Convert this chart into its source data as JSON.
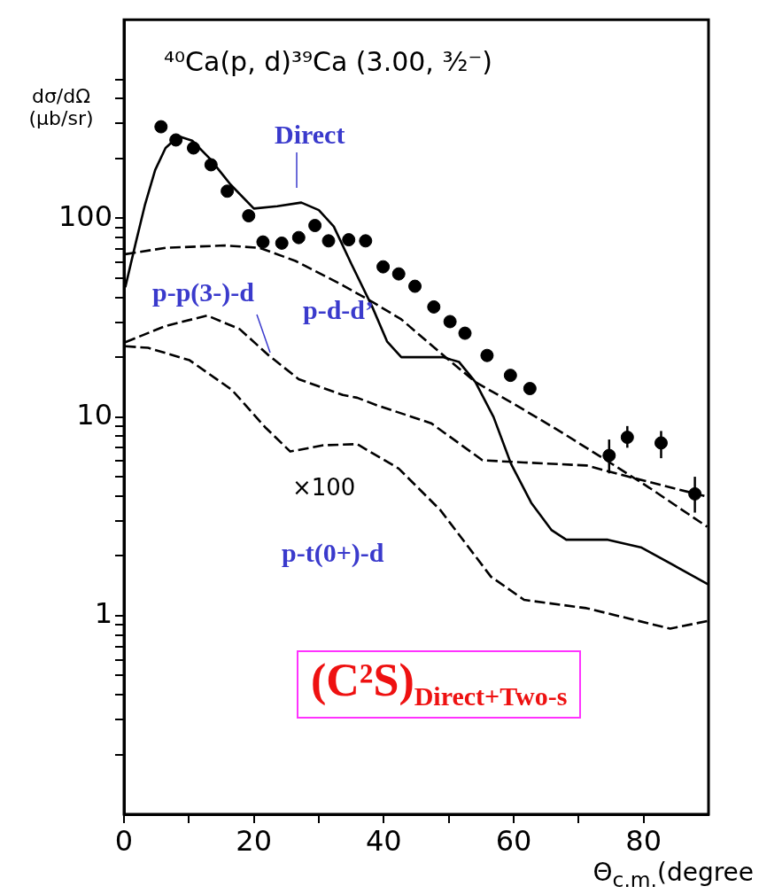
{
  "chart_data": {
    "type": "line",
    "title": "⁴⁰Ca(p, d)³⁹Ca (3.00, ³⁄₂⁻)",
    "xlabel": "Θ$_{c.m.}$(degree",
    "ylabel": "dσ/dΩ (μb/sr)",
    "xlim": [
      0,
      90
    ],
    "xticks": [
      0,
      {
        "value": 10,
        "label": null
      },
      20,
      {
        "value": 30,
        "label": null
      },
      40,
      {
        "value": 50,
        "label": null
      },
      60,
      {
        "value": 70,
        "label": null
      },
      80
    ],
    "ylim": [
      0.1,
      1000
    ],
    "log": "y",
    "grid": false,
    "legend": false,
    "yticks": [
      {
        "value": 0.2,
        "label": null
      },
      {
        "value": 0.3,
        "label": null
      },
      {
        "value": 0.4,
        "label": null
      },
      {
        "value": 0.5,
        "label": null
      },
      {
        "value": 0.6,
        "label": null
      },
      {
        "value": 0.7,
        "label": null
      },
      {
        "value": 0.8,
        "label": null
      },
      {
        "value": 0.9,
        "label": null
      },
      1,
      {
        "value": 2,
        "label": null
      },
      {
        "value": 3,
        "label": null
      },
      {
        "value": 4,
        "label": null
      },
      {
        "value": 5,
        "label": null
      },
      {
        "value": 6,
        "label": null
      },
      {
        "value": 7,
        "label": null
      },
      {
        "value": 8,
        "label": null
      },
      {
        "value": 9,
        "label": null
      },
      10,
      {
        "value": 20,
        "label": null
      },
      {
        "value": 30,
        "label": null
      },
      {
        "value": 40,
        "label": null
      },
      {
        "value": 50,
        "label": null
      },
      {
        "value": 60,
        "label": null
      },
      {
        "value": 70,
        "label": null
      },
      {
        "value": 80,
        "label": null
      },
      {
        "value": 90,
        "label": null
      },
      100,
      {
        "value": 200,
        "label": null
      },
      {
        "value": 300,
        "label": null
      },
      {
        "value": 400,
        "label": null
      },
      {
        "value": 500,
        "label": null
      }
    ],
    "annotations": [
      "×100",
      "(C²S)$_{Direct+Two-s}$"
    ],
    "series": [
      {
        "type": "scatter",
        "marker": "circle",
        "color": "#000000",
        "x": [
          5.7,
          8.0,
          10.7,
          13.4,
          15.9,
          19.2,
          21.4,
          24.3,
          26.9,
          29.4,
          31.5,
          34.6,
          37.2,
          39.9,
          42.3,
          44.8,
          47.7,
          50.2,
          52.5,
          55.9,
          59.5,
          62.5,
          74.7,
          77.5,
          82.7,
          87.9
        ],
        "values": [
          289,
          248,
          226,
          186,
          137,
          103,
          76,
          75,
          80,
          92,
          77,
          78,
          77,
          57,
          52.5,
          45.5,
          35.8,
          30.2,
          26.4,
          20.4,
          16.2,
          13.9,
          6.4,
          7.9,
          7.4,
          4.1
        ],
        "errors": [
          null,
          null,
          null,
          null,
          null,
          null,
          null,
          null,
          null,
          null,
          null,
          null,
          null,
          null,
          null,
          null,
          null,
          null,
          null,
          null,
          null,
          null,
          [
            5.2,
            7.7
          ],
          [
            7.0,
            9.0
          ],
          [
            6.2,
            8.5
          ],
          [
            3.3,
            5.0
          ]
        ]
      },
      {
        "name": "Direct",
        "line_style": "solid",
        "color": "#000000",
        "x": [
          0.2,
          1.8,
          3.2,
          4.8,
          6.4,
          8.4,
          10.5,
          13.2,
          16.4,
          20.0,
          23.6,
          27.3,
          30.0,
          32.3,
          35.0,
          38.2,
          40.5,
          42.7,
          49.1,
          51.6,
          54.1,
          56.9,
          59.6,
          62.7,
          65.8,
          68.1,
          74.5,
          79.7,
          89.9
        ],
        "values": [
          45,
          75,
          116,
          175,
          226,
          259,
          246,
          200,
          148,
          112,
          115,
          120,
          110,
          91,
          59,
          36,
          24,
          20,
          20,
          18.9,
          15,
          10,
          5.8,
          3.7,
          2.7,
          2.41,
          2.41,
          2.2,
          1.44
        ]
      },
      {
        "name": "p-d-d’",
        "line_style": "dashed",
        "color": "#000000",
        "x": [
          0.2,
          6.4,
          15.5,
          20.9,
          26.4,
          33.7,
          38.2,
          42.7,
          49.5,
          54.1,
          60.5,
          67.3,
          74.1,
          80.9,
          89.8
        ],
        "values": [
          66,
          71,
          73,
          71,
          61,
          46,
          38,
          31,
          20,
          15,
          11.4,
          8.4,
          6.1,
          4.4,
          2.8
        ]
      },
      {
        "name": "p-p(3-)-d",
        "line_style": "dashed",
        "color": "#000000",
        "x": [
          0.2,
          6.4,
          12.8,
          17.8,
          22.3,
          26.9,
          33.7,
          35.9,
          39.1,
          47.3,
          55.2,
          61.6,
          71.2,
          77.7,
          89.9
        ],
        "values": [
          23.8,
          28.7,
          32.4,
          27.7,
          20.4,
          15.5,
          12.9,
          12.5,
          11.4,
          9.3,
          6.05,
          5.9,
          5.7,
          5.0,
          3.96
        ]
      },
      {
        "name": "p-t(0+)-d",
        "line_style": "dashed",
        "color": "#000000",
        "x": [
          0.2,
          3.7,
          10.1,
          16.6,
          21.7,
          25.6,
          30.7,
          35.9,
          42.3,
          48.7,
          56.5,
          61.6,
          71.2,
          84.1,
          89.9
        ],
        "values": [
          22.7,
          22.3,
          19.3,
          13.7,
          8.9,
          6.7,
          7.2,
          7.3,
          5.5,
          3.4,
          1.57,
          1.2,
          1.09,
          0.86,
          0.94
        ]
      }
    ]
  }
}
